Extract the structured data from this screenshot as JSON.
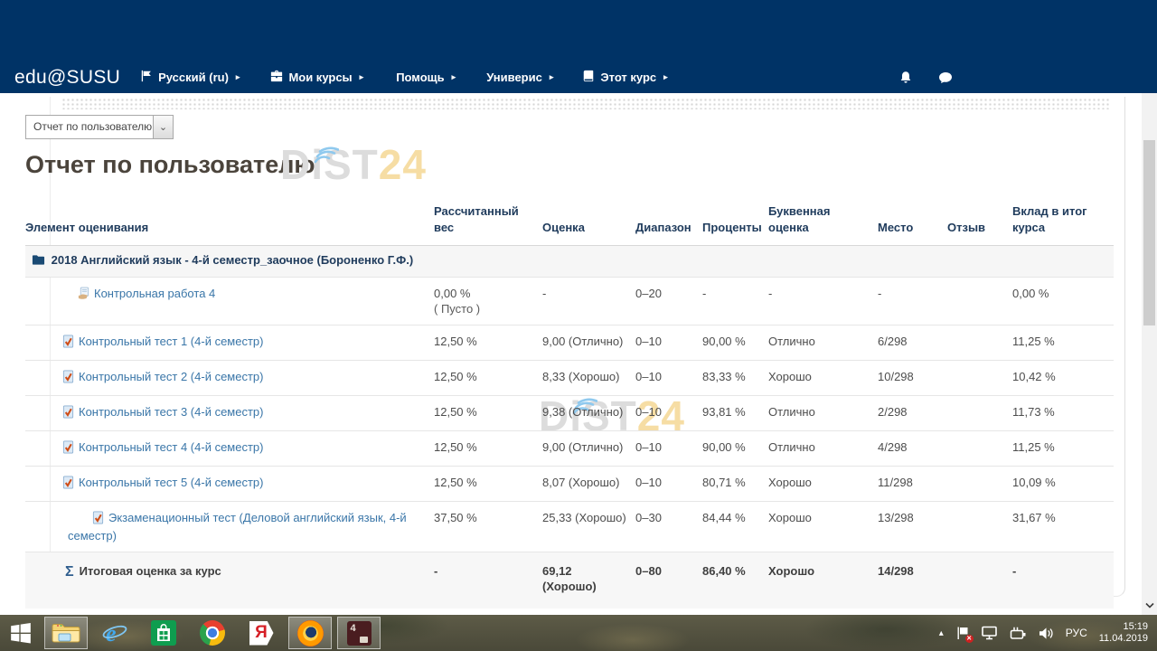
{
  "nav": {
    "brand": "edu@SUSU",
    "items": [
      {
        "label": "Русский (ru)",
        "icon": "flag-icon"
      },
      {
        "label": "Мои курсы",
        "icon": "briefcase-icon"
      },
      {
        "label": "Помощь",
        "icon": null
      },
      {
        "label": "Универис",
        "icon": null
      },
      {
        "label": "Этот курс",
        "icon": "book-icon"
      }
    ],
    "right_icons": [
      "notifications-bell-icon",
      "messages-chat-icon"
    ]
  },
  "content": {
    "report_select": "Отчет по пользователю",
    "title": "Отчет по пользователю",
    "watermark_gray": "DiST",
    "watermark_accent": "24"
  },
  "grades_table": {
    "headers": [
      "Элемент оценивания",
      "Рассчитанный вес",
      "Оценка",
      "Диапазон",
      "Проценты",
      "Буквенная оценка",
      "Место",
      "Отзыв",
      "Вклад в итог курса"
    ],
    "category": "2018 Английский язык - 4-й семестр_заочное (Бороненко Г.Ф.)",
    "rows": [
      {
        "name": "Контрольная работа 4",
        "icon": "assignment",
        "ind": "b",
        "weight": "0,00 %",
        "weight_note": "( Пусто )",
        "grade": "-",
        "range": "0–20",
        "percent": "-",
        "letter": "-",
        "rank": "-",
        "feedback": "",
        "contribution": "0,00 %"
      },
      {
        "name": "Контрольный тест 1 (4-й семестр)",
        "icon": "quiz",
        "ind": "a",
        "weight": "12,50 %",
        "weight_note": "",
        "grade": "9,00 (Отлично)",
        "range": "0–10",
        "percent": "90,00 %",
        "letter": "Отлично",
        "rank": "6/298",
        "feedback": "",
        "contribution": "11,25 %"
      },
      {
        "name": "Контрольный тест 2 (4-й семестр)",
        "icon": "quiz",
        "ind": "a",
        "weight": "12,50 %",
        "weight_note": "",
        "grade": "8,33 (Хорошо)",
        "range": "0–10",
        "percent": "83,33 %",
        "letter": "Хорошо",
        "rank": "10/298",
        "feedback": "",
        "contribution": "10,42 %"
      },
      {
        "name": "Контрольный тест 3 (4-й семестр)",
        "icon": "quiz",
        "ind": "a",
        "weight": "12,50 %",
        "weight_note": "",
        "grade": "9,38 (Отлично)",
        "range": "0–10",
        "percent": "93,81 %",
        "letter": "Отлично",
        "rank": "2/298",
        "feedback": "",
        "contribution": "11,73 %"
      },
      {
        "name": "Контрольный тест 4 (4-й семестр)",
        "icon": "quiz",
        "ind": "a",
        "weight": "12,50 %",
        "weight_note": "",
        "grade": "9,00 (Отлично)",
        "range": "0–10",
        "percent": "90,00 %",
        "letter": "Отлично",
        "rank": "4/298",
        "feedback": "",
        "contribution": "11,25 %"
      },
      {
        "name": "Контрольный тест 5 (4-й семестр)",
        "icon": "quiz",
        "ind": "a",
        "weight": "12,50 %",
        "weight_note": "",
        "grade": "8,07 (Хорошо)",
        "range": "0–10",
        "percent": "80,71 %",
        "letter": "Хорошо",
        "rank": "11/298",
        "feedback": "",
        "contribution": "10,09 %"
      },
      {
        "name": "Экзаменационный тест (Деловой английский язык, 4-й семестр)",
        "icon": "quiz",
        "ind": "c",
        "weight": "37,50 %",
        "weight_note": "",
        "grade": "25,33 (Хорошо)",
        "range": "0–30",
        "percent": "84,44 %",
        "letter": "Хорошо",
        "rank": "13/298",
        "feedback": "",
        "contribution": "31,67 %"
      }
    ],
    "total": {
      "sigma": "Σ",
      "name": "Итоговая оценка за курс",
      "weight": "-",
      "grade": "69,12 (Хорошо)",
      "range": "0–80",
      "percent": "86,40 %",
      "letter": "Хорошо",
      "rank": "14/298",
      "feedback": "",
      "contribution": "-"
    }
  },
  "taskbar": {
    "apps": [
      "start",
      "file-explorer",
      "internet-explorer",
      "windows-store",
      "chrome",
      "yandex-browser",
      "firefox",
      "archive-app"
    ],
    "open_apps": [
      "file-explorer",
      "firefox",
      "archive-app"
    ],
    "tray": {
      "hidden_icons": "▴",
      "lang": "РУС",
      "time": "15:19",
      "date": "11.04.2019",
      "icons": [
        "action-center-flag-icon",
        "network-icon",
        "power-battery-icon",
        "volume-icon"
      ]
    }
  }
}
